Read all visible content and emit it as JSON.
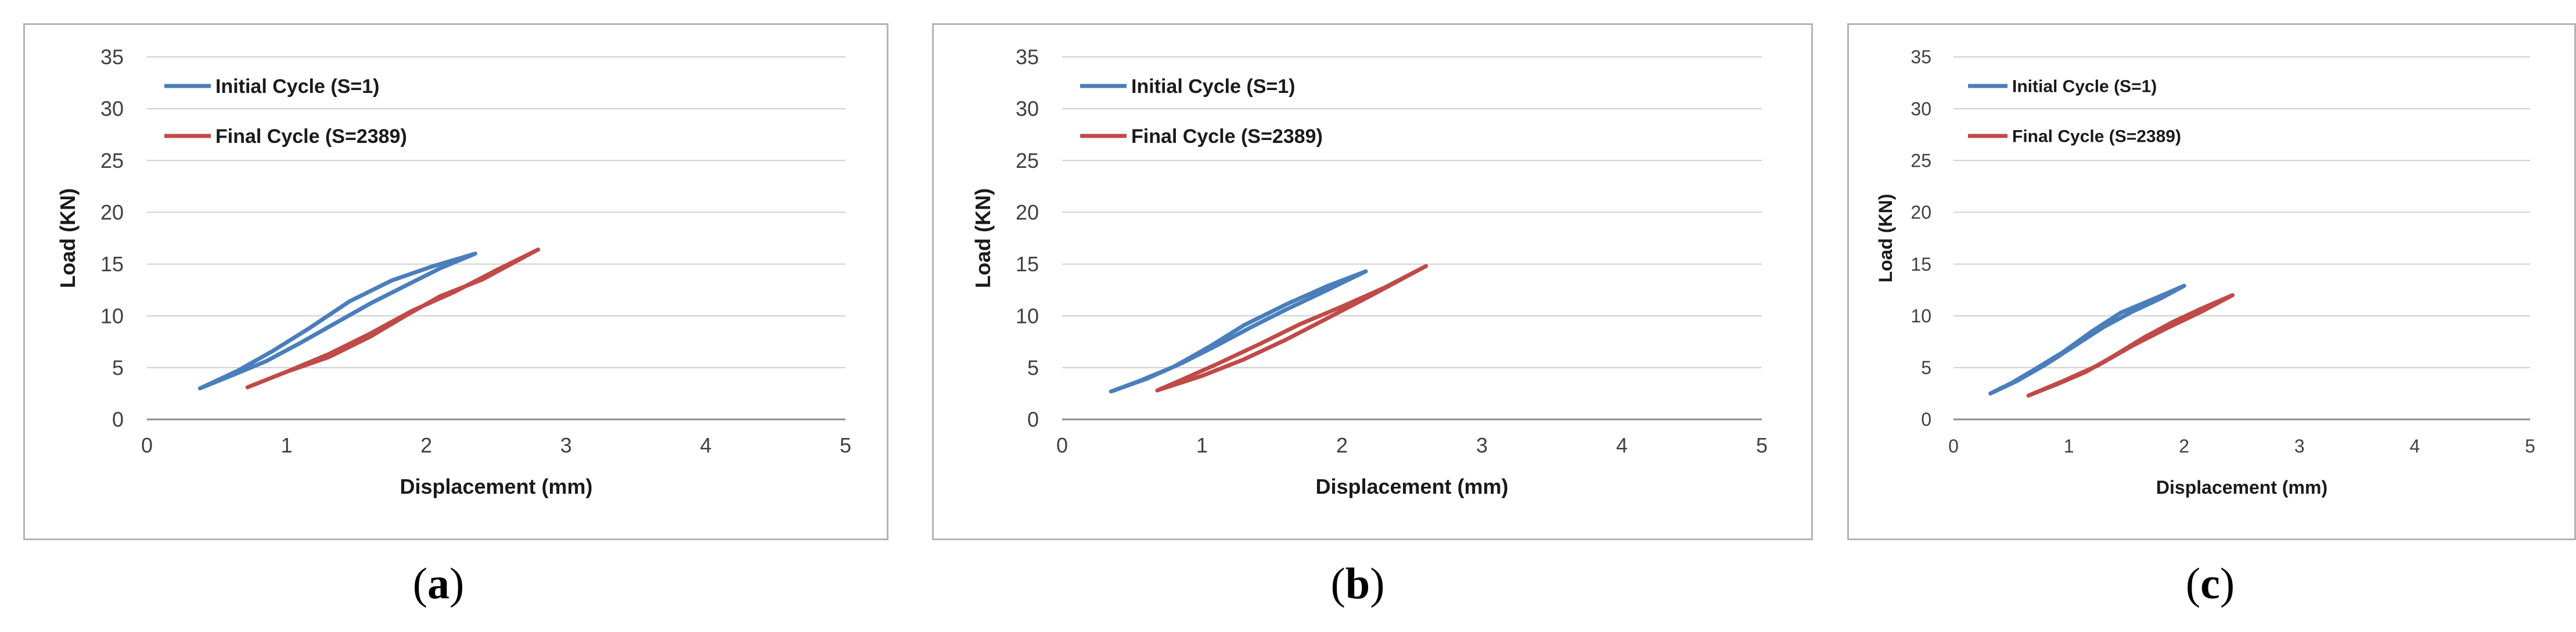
{
  "chart_data": [
    {
      "id": "a",
      "type": "line",
      "caption_letter": "a",
      "xlabel": "Displacement (mm)",
      "ylabel": "Load (KN)",
      "xlim": [
        0,
        5
      ],
      "ylim": [
        0,
        35
      ],
      "x_ticks": [
        "0",
        "1",
        "2",
        "3",
        "4",
        "5"
      ],
      "y_ticks": [
        "0",
        "5",
        "10",
        "15",
        "20",
        "25",
        "30",
        "35"
      ],
      "grid": "horizontal",
      "legend": "top-left",
      "series": [
        {
          "name": "Initial Cycle (S=1)",
          "color": "#4a7ebb",
          "points": [
            [
              0.38,
              3.0
            ],
            [
              0.6,
              4.2
            ],
            [
              0.85,
              5.6
            ],
            [
              1.1,
              7.4
            ],
            [
              1.35,
              9.3
            ],
            [
              1.6,
              11.2
            ],
            [
              1.85,
              12.9
            ],
            [
              2.1,
              14.6
            ],
            [
              2.35,
              16.0
            ],
            [
              2.05,
              14.8
            ],
            [
              1.75,
              13.4
            ],
            [
              1.45,
              11.4
            ],
            [
              1.15,
              8.7
            ],
            [
              0.9,
              6.6
            ],
            [
              0.65,
              4.7
            ],
            [
              0.38,
              3.0
            ]
          ]
        },
        {
          "name": "Final Cycle (S=2389)",
          "color": "#be4b48",
          "points": [
            [
              0.72,
              3.1
            ],
            [
              1.0,
              4.6
            ],
            [
              1.3,
              6.0
            ],
            [
              1.6,
              8.0
            ],
            [
              1.85,
              10.0
            ],
            [
              2.1,
              11.9
            ],
            [
              2.4,
              13.5
            ],
            [
              2.8,
              16.4
            ],
            [
              2.5,
              14.4
            ],
            [
              2.2,
              12.3
            ],
            [
              1.9,
              10.5
            ],
            [
              1.6,
              8.3
            ],
            [
              1.3,
              6.3
            ],
            [
              1.0,
              4.6
            ],
            [
              0.72,
              3.1
            ]
          ]
        }
      ]
    },
    {
      "id": "b",
      "type": "line",
      "caption_letter": "b",
      "xlabel": "Displacement (mm)",
      "ylabel": "Load (KN)",
      "xlim": [
        0,
        5
      ],
      "ylim": [
        0,
        35
      ],
      "x_ticks": [
        "0",
        "1",
        "2",
        "3",
        "4",
        "5"
      ],
      "y_ticks": [
        "0",
        "5",
        "10",
        "15",
        "20",
        "25",
        "30",
        "35"
      ],
      "grid": "horizontal",
      "legend": "top-left",
      "series": [
        {
          "name": "Initial Cycle (S=1)",
          "color": "#4a7ebb",
          "points": [
            [
              0.35,
              2.7
            ],
            [
              0.6,
              3.9
            ],
            [
              0.85,
              5.4
            ],
            [
              1.1,
              7.1
            ],
            [
              1.35,
              8.9
            ],
            [
              1.6,
              10.6
            ],
            [
              1.85,
              12.2
            ],
            [
              2.17,
              14.3
            ],
            [
              1.9,
              12.9
            ],
            [
              1.6,
              11.1
            ],
            [
              1.3,
              9.1
            ],
            [
              1.05,
              7.0
            ],
            [
              0.8,
              5.1
            ],
            [
              0.55,
              3.7
            ],
            [
              0.35,
              2.7
            ]
          ]
        },
        {
          "name": "Final Cycle (S=2389)",
          "color": "#be4b48",
          "points": [
            [
              0.68,
              2.8
            ],
            [
              1.0,
              4.2
            ],
            [
              1.3,
              5.8
            ],
            [
              1.6,
              7.7
            ],
            [
              1.9,
              9.8
            ],
            [
              2.2,
              11.9
            ],
            [
              2.6,
              14.8
            ],
            [
              2.3,
              12.7
            ],
            [
              2.0,
              10.9
            ],
            [
              1.7,
              9.2
            ],
            [
              1.4,
              7.2
            ],
            [
              1.1,
              5.3
            ],
            [
              0.85,
              3.8
            ],
            [
              0.68,
              2.8
            ]
          ]
        }
      ]
    },
    {
      "id": "c",
      "type": "line",
      "caption_letter": "c",
      "xlabel": "Displacement (mm)",
      "ylabel": "Load (KN)",
      "xlim": [
        0,
        5
      ],
      "ylim": [
        0,
        35
      ],
      "x_ticks": [
        "0",
        "1",
        "2",
        "3",
        "4",
        "5"
      ],
      "y_ticks": [
        "0",
        "5",
        "10",
        "15",
        "20",
        "25",
        "30",
        "35"
      ],
      "grid": "horizontal",
      "legend": "top-left",
      "series": [
        {
          "name": "Initial Cycle (S=1)",
          "color": "#4a7ebb",
          "points": [
            [
              0.32,
              2.5
            ],
            [
              0.55,
              3.7
            ],
            [
              0.8,
              5.3
            ],
            [
              1.05,
              7.1
            ],
            [
              1.3,
              8.9
            ],
            [
              1.55,
              10.4
            ],
            [
              1.8,
              11.7
            ],
            [
              2.0,
              12.9
            ],
            [
              1.75,
              11.7
            ],
            [
              1.45,
              10.3
            ],
            [
              1.2,
              8.5
            ],
            [
              0.95,
              6.5
            ],
            [
              0.7,
              4.8
            ],
            [
              0.5,
              3.5
            ],
            [
              0.32,
              2.5
            ]
          ]
        },
        {
          "name": "Final Cycle (S=2389)",
          "color": "#be4b48",
          "points": [
            [
              0.65,
              2.3
            ],
            [
              0.9,
              3.4
            ],
            [
              1.15,
              4.6
            ],
            [
              1.4,
              6.2
            ],
            [
              1.65,
              7.9
            ],
            [
              1.9,
              9.4
            ],
            [
              2.15,
              10.7
            ],
            [
              2.42,
              12.0
            ],
            [
              2.15,
              10.4
            ],
            [
              1.85,
              8.8
            ],
            [
              1.55,
              7.1
            ],
            [
              1.25,
              5.2
            ],
            [
              0.95,
              3.7
            ],
            [
              0.65,
              2.3
            ]
          ]
        }
      ]
    }
  ]
}
